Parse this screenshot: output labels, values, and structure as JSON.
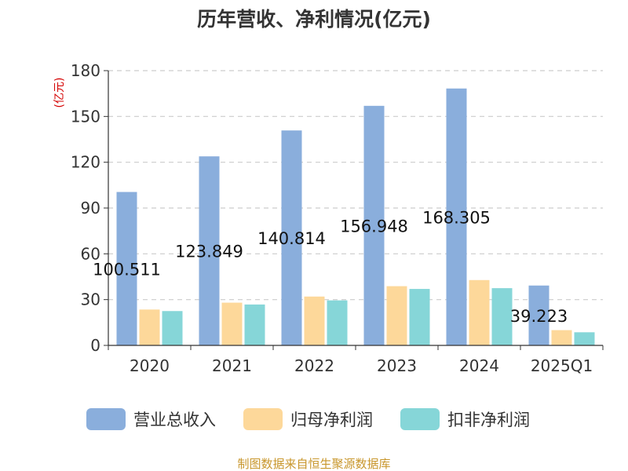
{
  "chart_data": {
    "type": "bar",
    "title": "历年营收、净利情况(亿元)",
    "ylabel": "(亿元)",
    "xlabel": "",
    "categories": [
      "2020",
      "2021",
      "2022",
      "2023",
      "2024",
      "2025Q1"
    ],
    "ylim": [
      0,
      180
    ],
    "yticks": [
      0,
      30,
      60,
      90,
      120,
      150,
      180
    ],
    "grid": true,
    "legend_position": "bottom",
    "series": [
      {
        "name": "营业总收入",
        "color": "#8aaedc",
        "values": [
          100.511,
          123.849,
          140.814,
          156.948,
          168.305,
          39.223
        ],
        "labels": [
          "100.511",
          "123.849",
          "140.814",
          "156.948",
          "168.305",
          "39.223"
        ]
      },
      {
        "name": "归母净利润",
        "color": "#fdd89a",
        "values": [
          23.5,
          28.0,
          32.0,
          38.8,
          42.8,
          10.0
        ]
      },
      {
        "name": "扣非净利润",
        "color": "#86d6d8",
        "values": [
          22.5,
          26.8,
          29.5,
          37.0,
          37.5,
          8.6
        ]
      }
    ]
  },
  "source": "制图数据来自恒生聚源数据库"
}
